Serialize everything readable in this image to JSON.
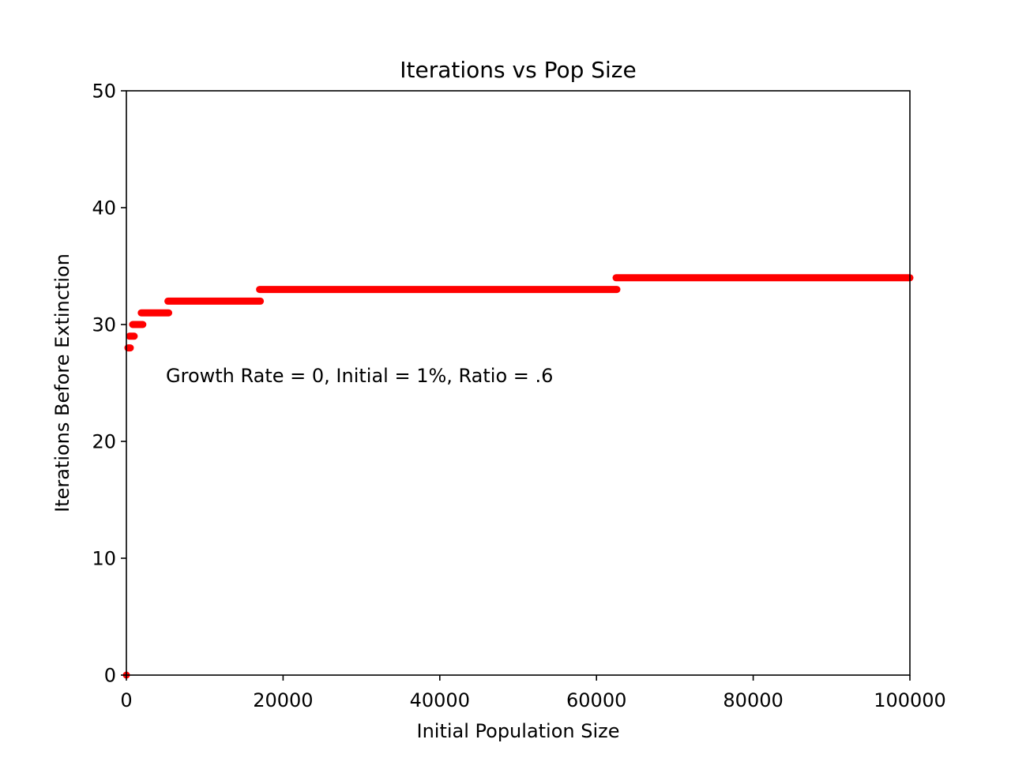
{
  "chart_data": {
    "type": "scatter",
    "title": "Iterations vs Pop Size",
    "xlabel": "Initial Population Size",
    "ylabel": "Iterations Before Extinction",
    "xlim": [
      0,
      100000
    ],
    "ylim": [
      0,
      50
    ],
    "xticks": [
      0,
      20000,
      40000,
      60000,
      80000,
      100000
    ],
    "yticks": [
      0,
      10,
      20,
      30,
      40,
      50
    ],
    "grid": false,
    "marker_color": "#ff0000",
    "annotation": "Growth Rate = 0, Initial = 1%, Ratio = .6",
    "series": [
      {
        "color": "#ff0000",
        "steps": [
          {
            "x_start": 0,
            "x_end": 0,
            "y": 0
          },
          {
            "x_start": 200,
            "x_end": 500,
            "y": 28
          },
          {
            "x_start": 400,
            "x_end": 1000,
            "y": 29
          },
          {
            "x_start": 800,
            "x_end": 2100,
            "y": 30
          },
          {
            "x_start": 1900,
            "x_end": 5400,
            "y": 31
          },
          {
            "x_start": 5300,
            "x_end": 17100,
            "y": 32
          },
          {
            "x_start": 17000,
            "x_end": 62600,
            "y": 33
          },
          {
            "x_start": 62500,
            "x_end": 100000,
            "y": 34
          }
        ]
      }
    ]
  }
}
